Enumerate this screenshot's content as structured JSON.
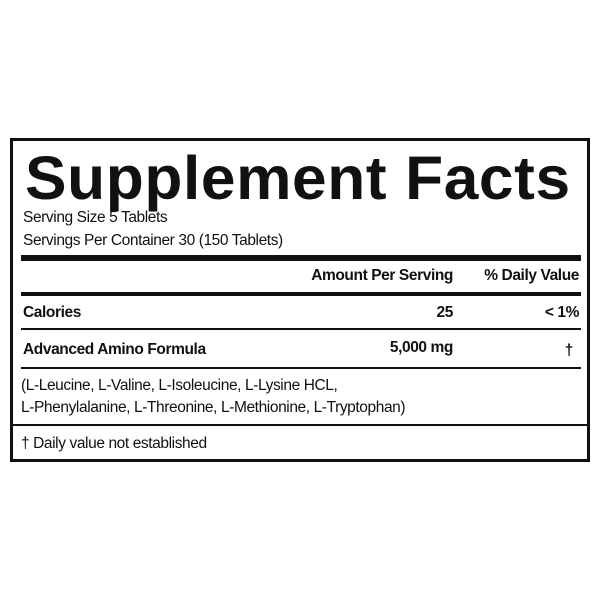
{
  "title": "Supplement Facts",
  "serving_size": "Serving Size 5 Tablets",
  "servings_per_container": "Servings Per Container 30 (150 Tablets)",
  "header": {
    "amount": "Amount Per Serving",
    "daily_value": "% Daily Value"
  },
  "rows": [
    {
      "name": "Calories",
      "amount": "25",
      "daily_value": "< 1%"
    },
    {
      "name": "Advanced Amino Formula",
      "amount": "5,000 mg",
      "daily_value": "†"
    }
  ],
  "ingredients": [
    "(L-Leucine, L-Valine, L-Isoleucine, L-Lysine HCL,",
    "L-Phenylalanine, L-Threonine, L-Methionine, L-Tryptophan)"
  ],
  "footnote": "† Daily value not established"
}
